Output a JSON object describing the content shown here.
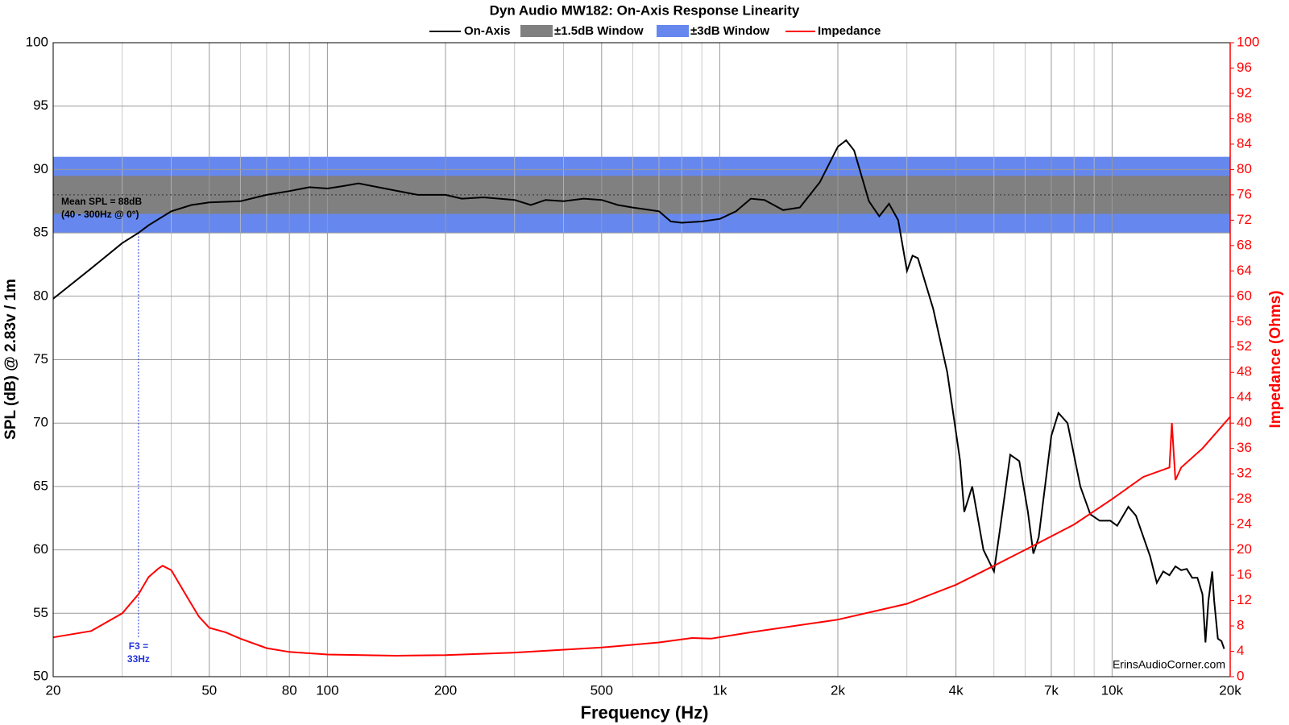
{
  "chart_data": {
    "type": "line",
    "title": "Dyn Audio MW182: On-Axis Response Linearity",
    "x_label": "Frequency (Hz)",
    "y_label": "SPL (dB) @ 2.83v / 1m",
    "y2_label": "Impedance (Ohms)",
    "log_x": true,
    "grid": true,
    "xlim": [
      20,
      20000
    ],
    "xticks": [
      20,
      50,
      80,
      100,
      200,
      500,
      {
        "value": 1000,
        "label": "1k"
      },
      {
        "value": 2000,
        "label": "2k"
      },
      {
        "value": 4000,
        "label": "4k"
      },
      {
        "value": 7000,
        "label": "7k"
      },
      {
        "value": 10000,
        "label": "10k"
      },
      {
        "value": 20000,
        "label": "20k"
      }
    ],
    "xgrid_minor": [
      30,
      40,
      60,
      70,
      90,
      300,
      400,
      600,
      700,
      800,
      900,
      3000,
      5000,
      6000,
      8000,
      9000
    ],
    "ylim": [
      50,
      100
    ],
    "yticks": [
      50,
      55,
      60,
      65,
      70,
      75,
      80,
      85,
      90,
      95,
      100
    ],
    "y2lim": [
      0,
      100
    ],
    "y2ticks": [
      0,
      4,
      8,
      12,
      16,
      20,
      24,
      28,
      32,
      36,
      40,
      44,
      48,
      52,
      56,
      60,
      64,
      68,
      72,
      76,
      80,
      84,
      88,
      92,
      96,
      100
    ],
    "bands": [
      {
        "name": "±3dB Window",
        "color": "#6688ee",
        "range": [
          85,
          91
        ]
      },
      {
        "name": "±1.5dB Window",
        "color": "#808080",
        "range": [
          86.5,
          89.5
        ]
      }
    ],
    "mean": 88,
    "mean_label": "Mean SPL = 88dB",
    "mean_note": "(40 - 300Hz @ 0°)",
    "f3": {
      "freq": 33,
      "level": 85,
      "label": "F3 =",
      "value_label": "33Hz"
    },
    "watermark": "ErinsAudioCorner.com",
    "series": [
      {
        "name": "On-Axis",
        "color": "#000000",
        "x": [
          20,
          25,
          30,
          33,
          35,
          40,
          45,
          50,
          60,
          70,
          80,
          90,
          100,
          110,
          120,
          140,
          170,
          200,
          220,
          250,
          300,
          330,
          360,
          400,
          450,
          500,
          550,
          600,
          700,
          750,
          800,
          900,
          1000,
          1100,
          1200,
          1300,
          1450,
          1600,
          1800,
          2000,
          2100,
          2200,
          2400,
          2550,
          2700,
          2850,
          3000,
          3100,
          3200,
          3500,
          3800,
          4100,
          4200,
          4400,
          4700,
          5000,
          5200,
          5500,
          5800,
          6100,
          6300,
          6500,
          7000,
          7300,
          7700,
          8300,
          8800,
          9300,
          9900,
          10300,
          11000,
          11500,
          12500,
          13000,
          13500,
          14000,
          14500,
          15000,
          15500,
          16000,
          16500,
          17000,
          17300,
          17600,
          18000,
          18200,
          18600,
          19000,
          19300
        ],
        "values": [
          79.8,
          82.2,
          84.2,
          85,
          85.6,
          86.7,
          87.2,
          87.4,
          87.5,
          88,
          88.3,
          88.6,
          88.5,
          88.7,
          88.9,
          88.5,
          88,
          88,
          87.7,
          87.8,
          87.6,
          87.2,
          87.6,
          87.5,
          87.7,
          87.6,
          87.2,
          87,
          86.7,
          85.9,
          85.8,
          85.9,
          86.1,
          86.7,
          87.7,
          87.6,
          86.8,
          87,
          89,
          91.8,
          92.3,
          91.5,
          87.5,
          86.3,
          87.3,
          86,
          82,
          83.2,
          83,
          79,
          74,
          67,
          63,
          65,
          60,
          58.3,
          62,
          67.5,
          67,
          63,
          59.7,
          61,
          69,
          70.8,
          70,
          65,
          62.8,
          62.3,
          62.3,
          61.9,
          63.4,
          62.7,
          59.5,
          57.4,
          58.3,
          58,
          58.7,
          58.4,
          58.5,
          57.8,
          57.8,
          56.5,
          52.7,
          56,
          58.3,
          56,
          53,
          52.8,
          52.2
        ]
      },
      {
        "name": "Impedance",
        "color": "#ff0000",
        "axis": "y2",
        "x": [
          20,
          25,
          30,
          33,
          35,
          37,
          38,
          40,
          43,
          47,
          50,
          55,
          60,
          70,
          80,
          100,
          150,
          200,
          300,
          500,
          700,
          850,
          950,
          1200,
          2000,
          3000,
          4000,
          5000,
          6000,
          8000,
          10000,
          12000,
          14000,
          14200,
          14500,
          15000,
          17000,
          20000
        ],
        "values": [
          6.2,
          7.2,
          10,
          13,
          15.7,
          17,
          17.5,
          16.8,
          13.5,
          9.5,
          7.7,
          7,
          6,
          4.5,
          3.9,
          3.5,
          3.3,
          3.4,
          3.8,
          4.6,
          5.4,
          6.1,
          6,
          7,
          9,
          11.5,
          14.5,
          17.5,
          20,
          24,
          28,
          31.5,
          33,
          40,
          31,
          33,
          36,
          41
        ]
      }
    ]
  }
}
